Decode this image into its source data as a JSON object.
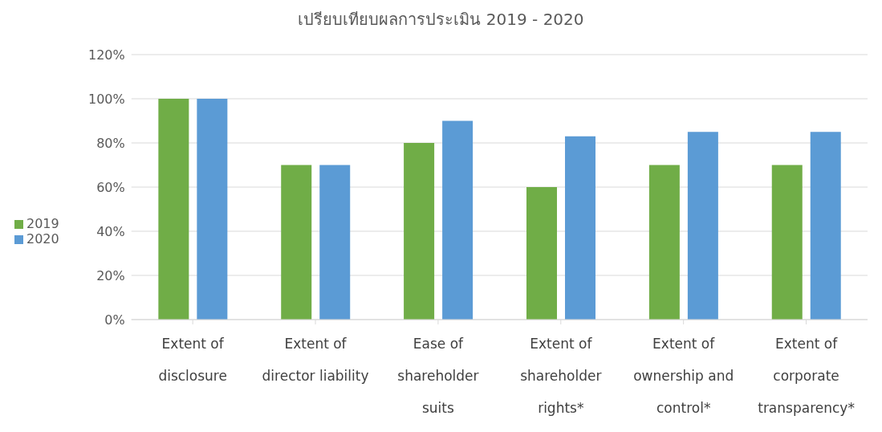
{
  "chart_data": {
    "type": "bar",
    "title": "เปรียบเทียบผลการประเมิน 2019 - 2020",
    "categories": [
      "Extent of disclosure",
      "Extent of director liability",
      "Ease of shareholder suits",
      "Extent of shareholder rights*",
      "Extent of ownership and control*",
      "Extent of corporate transparency*"
    ],
    "series": [
      {
        "name": "2019",
        "color": "#70ad47",
        "values": [
          100,
          70,
          80,
          60,
          70,
          70
        ]
      },
      {
        "name": "2020",
        "color": "#5b9bd5",
        "values": [
          100,
          70,
          90,
          83,
          85,
          85
        ]
      }
    ],
    "ylim": [
      0,
      120
    ],
    "yticks": [
      {
        "value": 0,
        "label": "0%"
      },
      {
        "value": 20,
        "label": "20%"
      },
      {
        "value": 40,
        "label": "40%"
      },
      {
        "value": 60,
        "label": "60%"
      },
      {
        "value": 80,
        "label": "80%"
      },
      {
        "value": 100,
        "label": "100%"
      },
      {
        "value": 120,
        "label": "120%"
      }
    ],
    "grid": "y",
    "legend": "left"
  }
}
